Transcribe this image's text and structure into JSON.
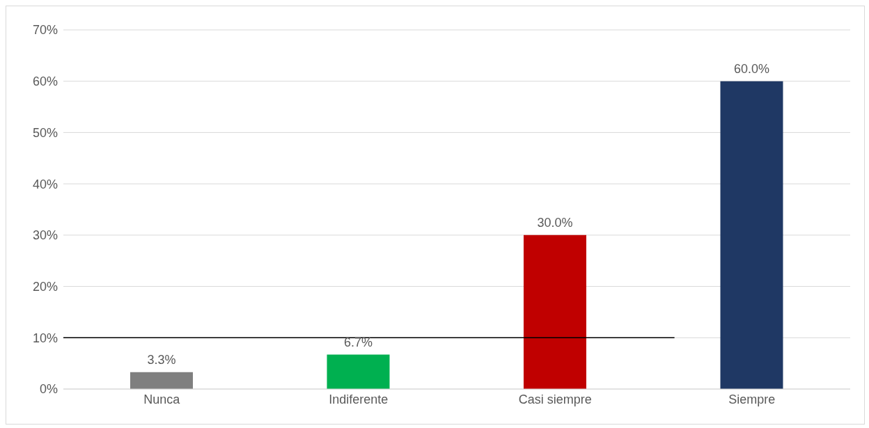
{
  "chart_data": {
    "type": "bar",
    "categories": [
      "Nunca",
      "Indiferente",
      "Casi siempre",
      "Siempre"
    ],
    "values": [
      3.3,
      6.7,
      30.0,
      60.0
    ],
    "colors": [
      "#7f7f7f",
      "#00b050",
      "#c00000",
      "#1f3864"
    ],
    "value_labels": [
      "3.3%",
      "6.7%",
      "30.0%",
      "60.0%"
    ],
    "ylim": [
      0,
      70
    ],
    "yticks": [
      {
        "value": 0,
        "label": "0%"
      },
      {
        "value": 10,
        "label": "10%"
      },
      {
        "value": 20,
        "label": "20%"
      },
      {
        "value": 30,
        "label": "30%"
      },
      {
        "value": 40,
        "label": "40%"
      },
      {
        "value": 50,
        "label": "50%"
      },
      {
        "value": 60,
        "label": "60%"
      },
      {
        "value": 70,
        "label": "70%"
      }
    ],
    "grid": "y",
    "legend": false,
    "ref_lines": [
      {
        "axis": "y",
        "value": 10,
        "color": "#000000"
      }
    ]
  }
}
